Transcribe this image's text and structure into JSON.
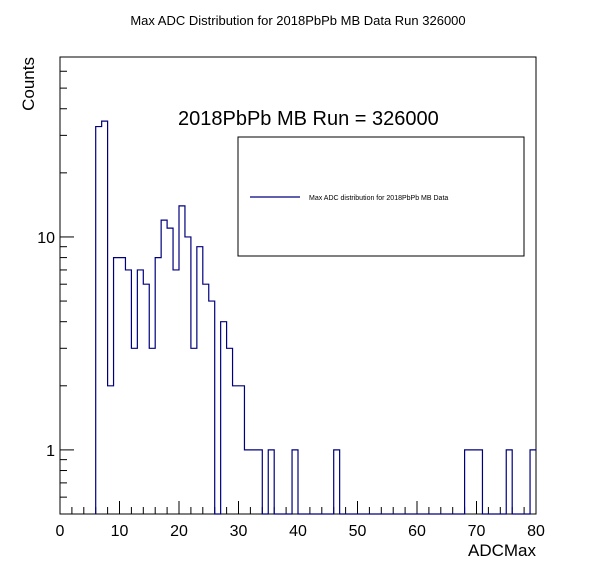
{
  "chart_data": {
    "type": "histogram",
    "title": "Max ADC Distribution for 2018PbPb MB Data Run 326000",
    "xlabel": "ADCMax",
    "ylabel": "Counts",
    "annotation": "2018PbPb MB Run = 326000",
    "legend": {
      "placement": "top-right",
      "entries": [
        "Max ADC distribution for 2018PbPb MB Data"
      ]
    },
    "xlim": [
      0,
      80
    ],
    "ylim": [
      0.5,
      70
    ],
    "yscale": "log",
    "grid": false,
    "line_color": "#00007f",
    "bin_width": 1,
    "x_ticks": [
      0,
      10,
      20,
      30,
      40,
      50,
      60,
      70,
      80
    ],
    "x_tick_labels": [
      "0",
      "10",
      "20",
      "30",
      "40",
      "50",
      "60",
      "70",
      "80"
    ],
    "y_ticks": [
      1,
      10
    ],
    "y_tick_labels": [
      "1",
      "10"
    ],
    "bins": [
      {
        "x": 6,
        "count": 33
      },
      {
        "x": 7,
        "count": 35
      },
      {
        "x": 8,
        "count": 2
      },
      {
        "x": 9,
        "count": 8
      },
      {
        "x": 10,
        "count": 8
      },
      {
        "x": 11,
        "count": 7
      },
      {
        "x": 12,
        "count": 3
      },
      {
        "x": 13,
        "count": 7
      },
      {
        "x": 14,
        "count": 6
      },
      {
        "x": 15,
        "count": 3
      },
      {
        "x": 16,
        "count": 8
      },
      {
        "x": 17,
        "count": 12
      },
      {
        "x": 18,
        "count": 11
      },
      {
        "x": 19,
        "count": 7
      },
      {
        "x": 20,
        "count": 14
      },
      {
        "x": 21,
        "count": 10
      },
      {
        "x": 22,
        "count": 3
      },
      {
        "x": 23,
        "count": 9
      },
      {
        "x": 24,
        "count": 6
      },
      {
        "x": 25,
        "count": 5
      },
      {
        "x": 26,
        "count": 0
      },
      {
        "x": 27,
        "count": 4
      },
      {
        "x": 28,
        "count": 3
      },
      {
        "x": 29,
        "count": 2
      },
      {
        "x": 30,
        "count": 2
      },
      {
        "x": 31,
        "count": 1
      },
      {
        "x": 32,
        "count": 1
      },
      {
        "x": 33,
        "count": 1
      },
      {
        "x": 35,
        "count": 1
      },
      {
        "x": 39,
        "count": 1
      },
      {
        "x": 46,
        "count": 1
      },
      {
        "x": 68,
        "count": 1
      },
      {
        "x": 69,
        "count": 1
      },
      {
        "x": 70,
        "count": 1
      },
      {
        "x": 75,
        "count": 1
      },
      {
        "x": 79,
        "count": 1
      }
    ]
  }
}
